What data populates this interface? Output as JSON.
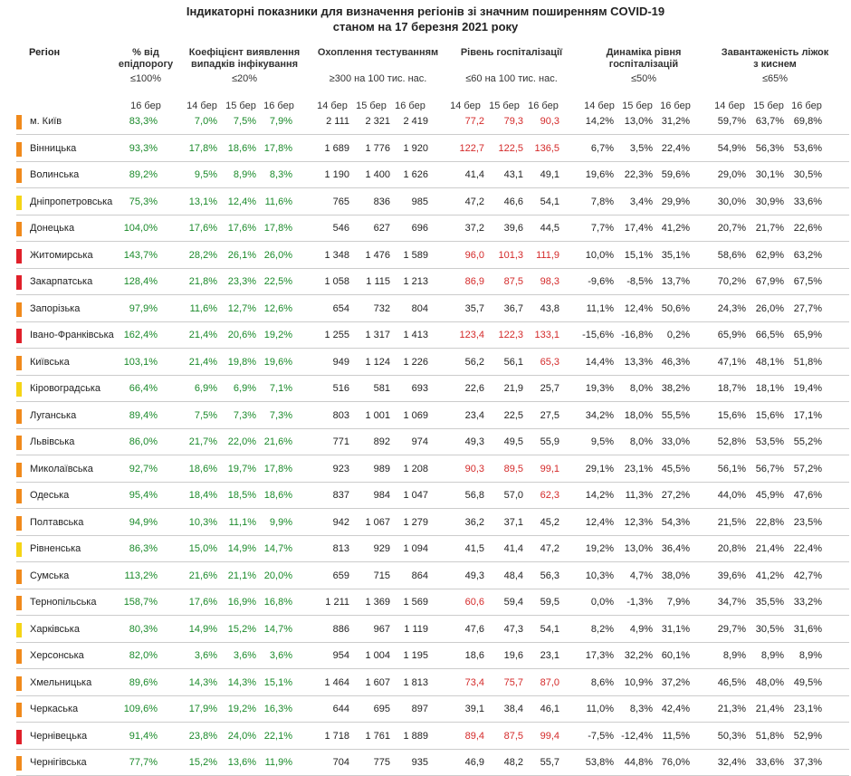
{
  "title_line1": "Індикаторні показники для визначення регіонів зі значним поширенням COVID-19",
  "title_line2": "станом на 17 березня 2021 року",
  "headers": {
    "region": "Регіон",
    "epid": {
      "title": "% від епідпорогу",
      "threshold": "≤100%"
    },
    "coef": {
      "title": "Коефіцієнт виявлення випадків інфікування",
      "threshold": "≤20%"
    },
    "testing": {
      "title": "Охоплення тестуванням",
      "threshold": "≥300 на 100 тис. нас."
    },
    "hosp": {
      "title": "Рівень госпіталізації",
      "threshold": "≤60 на 100 тис. нас."
    },
    "dyn": {
      "title": "Динаміка рівня госпіталізацій",
      "threshold": "≤50%"
    },
    "oxy": {
      "title": "Завантаженість ліжок з киснем",
      "threshold": "≤65%"
    }
  },
  "dates": {
    "d14": "14 бер",
    "d15": "15 бер",
    "d16": "16 бер"
  },
  "colors": {
    "orange": "#f08a1c",
    "red": "#e0202a",
    "yellow": "#f5d415",
    "green_text": "#1a8a2a",
    "red_text": "#d42a2a"
  },
  "rows": [
    {
      "name": "м. Київ",
      "marker": "orange",
      "epid": "83,3%",
      "coef": [
        "7,0%",
        "7,5%",
        "7,9%"
      ],
      "test": [
        "2 111",
        "2 321",
        "2 419"
      ],
      "hosp": [
        "77,2",
        "79,3",
        "90,3"
      ],
      "hosp_color": "red",
      "dyn": [
        "14,2%",
        "13,0%",
        "31,2%"
      ],
      "oxy": [
        "59,7%",
        "63,7%",
        "69,8%"
      ]
    },
    {
      "name": "Вінницька",
      "marker": "orange",
      "epid": "93,3%",
      "coef": [
        "17,8%",
        "18,6%",
        "17,8%"
      ],
      "test": [
        "1 689",
        "1 776",
        "1 920"
      ],
      "hosp": [
        "122,7",
        "122,5",
        "136,5"
      ],
      "hosp_color": "red",
      "dyn": [
        "6,7%",
        "3,5%",
        "22,4%"
      ],
      "oxy": [
        "54,9%",
        "56,3%",
        "53,6%"
      ]
    },
    {
      "name": "Волинська",
      "marker": "orange",
      "epid": "89,2%",
      "coef": [
        "9,5%",
        "8,9%",
        "8,3%"
      ],
      "test": [
        "1 190",
        "1 400",
        "1 626"
      ],
      "hosp": [
        "41,4",
        "43,1",
        "49,1"
      ],
      "hosp_color": "black",
      "dyn": [
        "19,6%",
        "22,3%",
        "59,6%"
      ],
      "oxy": [
        "29,0%",
        "30,1%",
        "30,5%"
      ]
    },
    {
      "name": "Дніпропетровська",
      "marker": "yellow",
      "epid": "75,3%",
      "coef": [
        "13,1%",
        "12,4%",
        "11,6%"
      ],
      "test": [
        "765",
        "836",
        "985"
      ],
      "hosp": [
        "47,2",
        "46,6",
        "54,1"
      ],
      "hosp_color": "black",
      "dyn": [
        "7,8%",
        "3,4%",
        "29,9%"
      ],
      "oxy": [
        "30,0%",
        "30,9%",
        "33,6%"
      ]
    },
    {
      "name": "Донецька",
      "marker": "orange",
      "epid": "104,0%",
      "coef": [
        "17,6%",
        "17,6%",
        "17,8%"
      ],
      "test": [
        "546",
        "627",
        "696"
      ],
      "hosp": [
        "37,2",
        "39,6",
        "44,5"
      ],
      "hosp_color": "black",
      "dyn": [
        "7,7%",
        "17,4%",
        "41,2%"
      ],
      "oxy": [
        "20,7%",
        "21,7%",
        "22,6%"
      ]
    },
    {
      "name": "Житомирська",
      "marker": "red",
      "epid": "143,7%",
      "coef": [
        "28,2%",
        "26,1%",
        "26,0%"
      ],
      "test": [
        "1 348",
        "1 476",
        "1 589"
      ],
      "hosp": [
        "96,0",
        "101,3",
        "111,9"
      ],
      "hosp_color": "red",
      "dyn": [
        "10,0%",
        "15,1%",
        "35,1%"
      ],
      "oxy": [
        "58,6%",
        "62,9%",
        "63,2%"
      ]
    },
    {
      "name": "Закарпатська",
      "marker": "red",
      "epid": "128,4%",
      "coef": [
        "21,8%",
        "23,3%",
        "22,5%"
      ],
      "test": [
        "1 058",
        "1 115",
        "1 213"
      ],
      "hosp": [
        "86,9",
        "87,5",
        "98,3"
      ],
      "hosp_color": "red",
      "dyn": [
        "-9,6%",
        "-8,5%",
        "13,7%"
      ],
      "oxy": [
        "70,2%",
        "67,9%",
        "67,5%"
      ]
    },
    {
      "name": "Запорізька",
      "marker": "orange",
      "epid": "97,9%",
      "coef": [
        "11,6%",
        "12,7%",
        "12,6%"
      ],
      "test": [
        "654",
        "732",
        "804"
      ],
      "hosp": [
        "35,7",
        "36,7",
        "43,8"
      ],
      "hosp_color": "black",
      "dyn": [
        "11,1%",
        "12,4%",
        "50,6%"
      ],
      "oxy": [
        "24,3%",
        "26,0%",
        "27,7%"
      ]
    },
    {
      "name": "Івано-Франківська",
      "marker": "red",
      "epid": "162,4%",
      "coef": [
        "21,4%",
        "20,6%",
        "19,2%"
      ],
      "test": [
        "1 255",
        "1 317",
        "1 413"
      ],
      "hosp": [
        "123,4",
        "122,3",
        "133,1"
      ],
      "hosp_color": "red",
      "dyn": [
        "-15,6%",
        "-16,8%",
        "0,2%"
      ],
      "oxy": [
        "65,9%",
        "66,5%",
        "65,9%"
      ]
    },
    {
      "name": "Київська",
      "marker": "orange",
      "epid": "103,1%",
      "coef": [
        "21,4%",
        "19,8%",
        "19,6%"
      ],
      "test": [
        "949",
        "1 124",
        "1 226"
      ],
      "hosp": [
        "56,2",
        "56,1",
        "65,3"
      ],
      "hosp_color": "mixed3",
      "dyn": [
        "14,4%",
        "13,3%",
        "46,3%"
      ],
      "oxy": [
        "47,1%",
        "48,1%",
        "51,8%"
      ]
    },
    {
      "name": "Кіровоградська",
      "marker": "yellow",
      "epid": "66,4%",
      "coef": [
        "6,9%",
        "6,9%",
        "7,1%"
      ],
      "test": [
        "516",
        "581",
        "693"
      ],
      "hosp": [
        "22,6",
        "21,9",
        "25,7"
      ],
      "hosp_color": "black",
      "dyn": [
        "19,3%",
        "8,0%",
        "38,2%"
      ],
      "oxy": [
        "18,7%",
        "18,1%",
        "19,4%"
      ]
    },
    {
      "name": "Луганська",
      "marker": "orange",
      "epid": "89,4%",
      "coef": [
        "7,5%",
        "7,3%",
        "7,3%"
      ],
      "test": [
        "803",
        "1 001",
        "1 069"
      ],
      "hosp": [
        "23,4",
        "22,5",
        "27,5"
      ],
      "hosp_color": "black",
      "dyn": [
        "34,2%",
        "18,0%",
        "55,5%"
      ],
      "oxy": [
        "15,6%",
        "15,6%",
        "17,1%"
      ]
    },
    {
      "name": "Львівська",
      "marker": "orange",
      "epid": "86,0%",
      "coef": [
        "21,7%",
        "22,0%",
        "21,6%"
      ],
      "test": [
        "771",
        "892",
        "974"
      ],
      "hosp": [
        "49,3",
        "49,5",
        "55,9"
      ],
      "hosp_color": "black",
      "dyn": [
        "9,5%",
        "8,0%",
        "33,0%"
      ],
      "oxy": [
        "52,8%",
        "53,5%",
        "55,2%"
      ]
    },
    {
      "name": "Миколаївська",
      "marker": "orange",
      "epid": "92,7%",
      "coef": [
        "18,6%",
        "19,7%",
        "17,8%"
      ],
      "test": [
        "923",
        "989",
        "1 208"
      ],
      "hosp": [
        "90,3",
        "89,5",
        "99,1"
      ],
      "hosp_color": "red",
      "dyn": [
        "29,1%",
        "23,1%",
        "45,5%"
      ],
      "oxy": [
        "56,1%",
        "56,7%",
        "57,2%"
      ]
    },
    {
      "name": "Одеська",
      "marker": "orange",
      "epid": "95,4%",
      "coef": [
        "18,4%",
        "18,5%",
        "18,6%"
      ],
      "test": [
        "837",
        "984",
        "1 047"
      ],
      "hosp": [
        "56,8",
        "57,0",
        "62,3"
      ],
      "hosp_color": "mixed3",
      "dyn": [
        "14,2%",
        "11,3%",
        "27,2%"
      ],
      "oxy": [
        "44,0%",
        "45,9%",
        "47,6%"
      ]
    },
    {
      "name": "Полтавська",
      "marker": "orange",
      "epid": "94,9%",
      "coef": [
        "10,3%",
        "11,1%",
        "9,9%"
      ],
      "test": [
        "942",
        "1 067",
        "1 279"
      ],
      "hosp": [
        "36,2",
        "37,1",
        "45,2"
      ],
      "hosp_color": "black",
      "dyn": [
        "12,4%",
        "12,3%",
        "54,3%"
      ],
      "oxy": [
        "21,5%",
        "22,8%",
        "23,5%"
      ]
    },
    {
      "name": "Рівненська",
      "marker": "yellow",
      "epid": "86,3%",
      "coef": [
        "15,0%",
        "14,9%",
        "14,7%"
      ],
      "test": [
        "813",
        "929",
        "1 094"
      ],
      "hosp": [
        "41,5",
        "41,4",
        "47,2"
      ],
      "hosp_color": "black",
      "dyn": [
        "19,2%",
        "13,0%",
        "36,4%"
      ],
      "oxy": [
        "20,8%",
        "21,4%",
        "22,4%"
      ]
    },
    {
      "name": "Сумська",
      "marker": "orange",
      "epid": "113,2%",
      "coef": [
        "21,6%",
        "21,1%",
        "20,0%"
      ],
      "test": [
        "659",
        "715",
        "864"
      ],
      "hosp": [
        "49,3",
        "48,4",
        "56,3"
      ],
      "hosp_color": "black",
      "dyn": [
        "10,3%",
        "4,7%",
        "38,0%"
      ],
      "oxy": [
        "39,6%",
        "41,2%",
        "42,7%"
      ]
    },
    {
      "name": "Тернопільська",
      "marker": "orange",
      "epid": "158,7%",
      "coef": [
        "17,6%",
        "16,9%",
        "16,8%"
      ],
      "test": [
        "1 211",
        "1 369",
        "1 569"
      ],
      "hosp": [
        "60,6",
        "59,4",
        "59,5"
      ],
      "hosp_color": "mixed1",
      "dyn": [
        "0,0%",
        "-1,3%",
        "7,9%"
      ],
      "oxy": [
        "34,7%",
        "35,5%",
        "33,2%"
      ]
    },
    {
      "name": "Харківська",
      "marker": "yellow",
      "epid": "80,3%",
      "coef": [
        "14,9%",
        "15,2%",
        "14,7%"
      ],
      "test": [
        "886",
        "967",
        "1 119"
      ],
      "hosp": [
        "47,6",
        "47,3",
        "54,1"
      ],
      "hosp_color": "black",
      "dyn": [
        "8,2%",
        "4,9%",
        "31,1%"
      ],
      "oxy": [
        "29,7%",
        "30,5%",
        "31,6%"
      ]
    },
    {
      "name": "Херсонська",
      "marker": "orange",
      "epid": "82,0%",
      "coef": [
        "3,6%",
        "3,6%",
        "3,6%"
      ],
      "test": [
        "954",
        "1 004",
        "1 195"
      ],
      "hosp": [
        "18,6",
        "19,6",
        "23,1"
      ],
      "hosp_color": "black",
      "dyn": [
        "17,3%",
        "32,2%",
        "60,1%"
      ],
      "oxy": [
        "8,9%",
        "8,9%",
        "8,9%"
      ]
    },
    {
      "name": "Хмельницька",
      "marker": "orange",
      "epid": "89,6%",
      "coef": [
        "14,3%",
        "14,3%",
        "15,1%"
      ],
      "test": [
        "1 464",
        "1 607",
        "1 813"
      ],
      "hosp": [
        "73,4",
        "75,7",
        "87,0"
      ],
      "hosp_color": "red",
      "dyn": [
        "8,6%",
        "10,9%",
        "37,2%"
      ],
      "oxy": [
        "46,5%",
        "48,0%",
        "49,5%"
      ]
    },
    {
      "name": "Черкаська",
      "marker": "orange",
      "epid": "109,6%",
      "coef": [
        "17,9%",
        "19,2%",
        "16,3%"
      ],
      "test": [
        "644",
        "695",
        "897"
      ],
      "hosp": [
        "39,1",
        "38,4",
        "46,1"
      ],
      "hosp_color": "black",
      "dyn": [
        "11,0%",
        "8,3%",
        "42,4%"
      ],
      "oxy": [
        "21,3%",
        "21,4%",
        "23,1%"
      ]
    },
    {
      "name": "Чернівецька",
      "marker": "red",
      "epid": "91,4%",
      "coef": [
        "23,8%",
        "24,0%",
        "22,1%"
      ],
      "test": [
        "1 718",
        "1 761",
        "1 889"
      ],
      "hosp": [
        "89,4",
        "87,5",
        "99,4"
      ],
      "hosp_color": "red",
      "dyn": [
        "-7,5%",
        "-12,4%",
        "11,5%"
      ],
      "oxy": [
        "50,3%",
        "51,8%",
        "52,9%"
      ]
    },
    {
      "name": "Чернігівська",
      "marker": "orange",
      "epid": "77,7%",
      "coef": [
        "15,2%",
        "13,6%",
        "11,9%"
      ],
      "test": [
        "704",
        "775",
        "935"
      ],
      "hosp": [
        "46,9",
        "48,2",
        "55,7"
      ],
      "hosp_color": "black",
      "dyn": [
        "53,8%",
        "44,8%",
        "76,0%"
      ],
      "oxy": [
        "32,4%",
        "33,6%",
        "37,3%"
      ]
    }
  ]
}
